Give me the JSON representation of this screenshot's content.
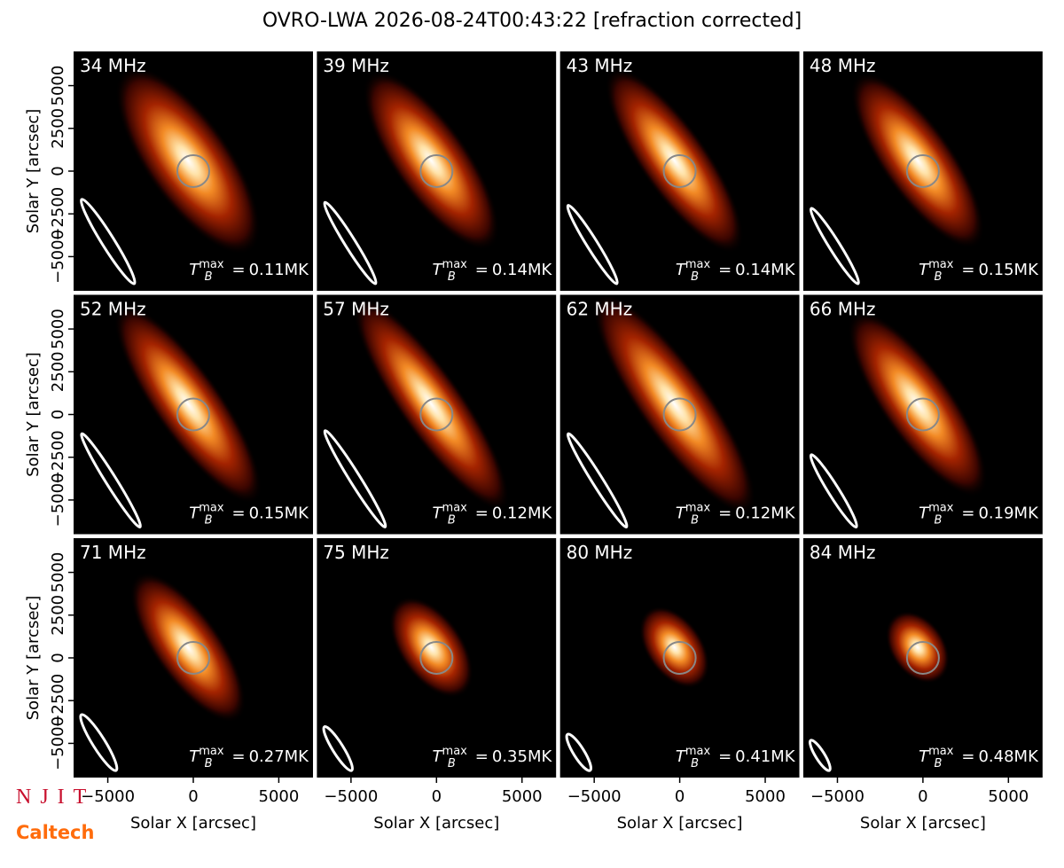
{
  "title": "OVRO-LWA 2026-08-24T00:43:22 [refraction corrected]",
  "xlabel": "Solar X [arcsec]",
  "ylabel": "Solar Y [arcsec]",
  "xlim": [
    -7000,
    7000
  ],
  "ylim": [
    -7000,
    7000
  ],
  "xticks": [
    {
      "value": -5000,
      "label": "−5000"
    },
    0,
    5000
  ],
  "yticks": [
    {
      "value": -5000,
      "label": "−5000"
    },
    {
      "value": -2500,
      "label": "−2500"
    },
    0,
    2500,
    5000
  ],
  "tb_symbol": "T",
  "tb_sub": "B",
  "tb_sup": "max",
  "tb_equals": "=",
  "logos": {
    "njit": "NJIT",
    "caltech": "Caltech"
  },
  "chart_data": [
    {
      "type": "image",
      "label": "34 MHz",
      "tb_max": 0.11,
      "tb_max_label": "0.11MK"
    },
    {
      "type": "image",
      "label": "39 MHz",
      "tb_max": 0.14,
      "tb_max_label": "0.14MK"
    },
    {
      "type": "image",
      "label": "43 MHz",
      "tb_max": 0.14,
      "tb_max_label": "0.14MK"
    },
    {
      "type": "image",
      "label": "48 MHz",
      "tb_max": 0.15,
      "tb_max_label": "0.15MK"
    },
    {
      "type": "image",
      "label": "52 MHz",
      "tb_max": 0.15,
      "tb_max_label": "0.15MK"
    },
    {
      "type": "image",
      "label": "57 MHz",
      "tb_max": 0.12,
      "tb_max_label": "0.12MK"
    },
    {
      "type": "image",
      "label": "62 MHz",
      "tb_max": 0.12,
      "tb_max_label": "0.12MK"
    },
    {
      "type": "image",
      "label": "66 MHz",
      "tb_max": 0.19,
      "tb_max_label": "0.19MK"
    },
    {
      "type": "image",
      "label": "71 MHz",
      "tb_max": 0.27,
      "tb_max_label": "0.27MK"
    },
    {
      "type": "image",
      "label": "75 MHz",
      "tb_max": 0.35,
      "tb_max_label": "0.35MK"
    },
    {
      "type": "image",
      "label": "80 MHz",
      "tb_max": 0.41,
      "tb_max_label": "0.41MK"
    },
    {
      "type": "image",
      "label": "84 MHz",
      "tb_max": 0.48,
      "tb_max_label": "0.48MK"
    }
  ]
}
